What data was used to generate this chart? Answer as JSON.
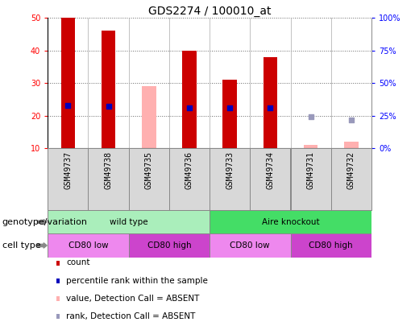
{
  "title": "GDS2274 / 100010_at",
  "samples": [
    "GSM49737",
    "GSM49738",
    "GSM49735",
    "GSM49736",
    "GSM49733",
    "GSM49734",
    "GSM49731",
    "GSM49732"
  ],
  "count_values": [
    50,
    46,
    null,
    40,
    31,
    38,
    null,
    null
  ],
  "count_absent_values": [
    null,
    null,
    29,
    null,
    null,
    null,
    11,
    12
  ],
  "percentile_values": [
    33,
    32,
    null,
    31,
    31,
    31,
    null,
    null
  ],
  "percentile_absent_values": [
    null,
    null,
    null,
    null,
    null,
    null,
    24,
    22
  ],
  "ylim_left": [
    10,
    50
  ],
  "ylim_right": [
    0,
    100
  ],
  "yticks_left": [
    10,
    20,
    30,
    40,
    50
  ],
  "yticks_right": [
    0,
    25,
    50,
    75,
    100
  ],
  "yticklabels_right": [
    "0%",
    "25%",
    "50%",
    "75%",
    "100%"
  ],
  "bar_color": "#cc0000",
  "bar_absent_color": "#ffb0b0",
  "dot_color": "#0000bb",
  "dot_absent_color": "#9999bb",
  "bar_width": 0.35,
  "dot_size": 18,
  "grid_color": "#666666",
  "axis_bg": "#d8d8d8",
  "plot_bg": "#ffffff",
  "genotype_groups": [
    {
      "label": "wild type",
      "start": 0,
      "end": 4,
      "color": "#aaeebb"
    },
    {
      "label": "Aire knockout",
      "start": 4,
      "end": 8,
      "color": "#44dd66"
    }
  ],
  "cell_type_groups": [
    {
      "label": "CD80 low",
      "start": 0,
      "end": 2,
      "color": "#ee88ee"
    },
    {
      "label": "CD80 high",
      "start": 2,
      "end": 4,
      "color": "#cc44cc"
    },
    {
      "label": "CD80 low",
      "start": 4,
      "end": 6,
      "color": "#ee88ee"
    },
    {
      "label": "CD80 high",
      "start": 6,
      "end": 8,
      "color": "#cc44cc"
    }
  ],
  "legend_items": [
    {
      "label": "count",
      "color": "#cc0000"
    },
    {
      "label": "percentile rank within the sample",
      "color": "#0000bb"
    },
    {
      "label": "value, Detection Call = ABSENT",
      "color": "#ffb0b0"
    },
    {
      "label": "rank, Detection Call = ABSENT",
      "color": "#9999bb"
    }
  ],
  "label_genotype": "genotype/variation",
  "label_celltype": "cell type",
  "title_fontsize": 10,
  "tick_fontsize": 7,
  "label_fontsize": 7.5,
  "legend_fontsize": 7.5,
  "row_label_fontsize": 8
}
